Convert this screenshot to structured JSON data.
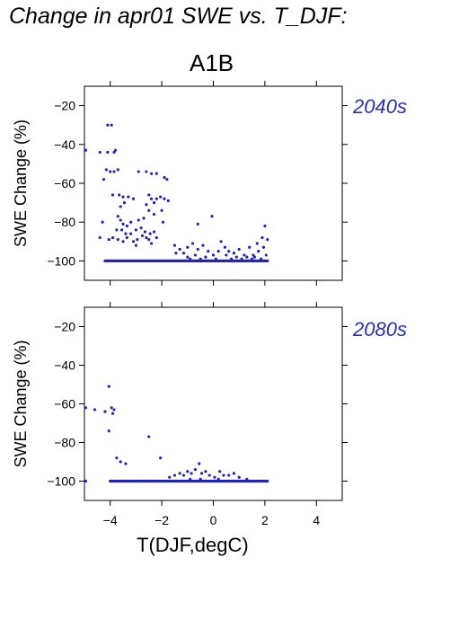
{
  "title": "Change in apr01 SWE vs. T_DJF:",
  "scenario": "A1B",
  "xlabel": "T(DJF,degC)",
  "colors": {
    "points": "#2424b0",
    "period_label": "#2a2fb4",
    "axis": "#000000"
  },
  "chart_data": [
    {
      "type": "scatter",
      "panel_label": "2040s",
      "ylabel": "SWE Change (%)",
      "xlim": [
        -5,
        5
      ],
      "ylim": [
        -110,
        -10
      ],
      "x_ticks": [
        -4,
        -2,
        0,
        2,
        4
      ],
      "y_ticks": [
        -100,
        -80,
        -60,
        -40,
        -20
      ],
      "y_tick_labels": [
        "−100",
        "−80",
        "−60",
        "−40",
        "−20"
      ],
      "x_tick_labels_shown": false,
      "grid": false,
      "points": [
        [
          -4.1,
          -30
        ],
        [
          -3.95,
          -30
        ],
        [
          -4.95,
          -43
        ],
        [
          -4.4,
          -44
        ],
        [
          -4.1,
          -44
        ],
        [
          -3.85,
          -44
        ],
        [
          -3.8,
          -43
        ],
        [
          -4.15,
          -53
        ],
        [
          -4.0,
          -54
        ],
        [
          -3.85,
          -54
        ],
        [
          -3.7,
          -53
        ],
        [
          -2.9,
          -54
        ],
        [
          -2.6,
          -54
        ],
        [
          -2.4,
          -55
        ],
        [
          -2.2,
          -55
        ],
        [
          -4.25,
          -58
        ],
        [
          -1.9,
          -57
        ],
        [
          -1.8,
          -58
        ],
        [
          -3.9,
          -66
        ],
        [
          -3.65,
          -66
        ],
        [
          -3.5,
          -67
        ],
        [
          -3.3,
          -67
        ],
        [
          -3.1,
          -68
        ],
        [
          -3.45,
          -70
        ],
        [
          -3.6,
          -72
        ],
        [
          -2.5,
          -66
        ],
        [
          -2.4,
          -68
        ],
        [
          -2.2,
          -68
        ],
        [
          -2.05,
          -67
        ],
        [
          -1.9,
          -68
        ],
        [
          -1.75,
          -69
        ],
        [
          -2.6,
          -71
        ],
        [
          -2.3,
          -70
        ],
        [
          -3.7,
          -77
        ],
        [
          -3.6,
          -79
        ],
        [
          -3.5,
          -81
        ],
        [
          -3.35,
          -82
        ],
        [
          -3.2,
          -80
        ],
        [
          -2.9,
          -79
        ],
        [
          -2.7,
          -78
        ],
        [
          -2.5,
          -74
        ],
        [
          -2.3,
          -76
        ],
        [
          -2.0,
          -74
        ],
        [
          -1.95,
          -80
        ],
        [
          -4.3,
          -80
        ],
        [
          -3.75,
          -84
        ],
        [
          -3.55,
          -84
        ],
        [
          -3.4,
          -86
        ],
        [
          -3.2,
          -86
        ],
        [
          -3.0,
          -84
        ],
        [
          -2.8,
          -83
        ],
        [
          -2.65,
          -85
        ],
        [
          -2.45,
          -86
        ],
        [
          -2.3,
          -85
        ],
        [
          -4.4,
          -88
        ],
        [
          -3.9,
          -88
        ],
        [
          -3.7,
          -89
        ],
        [
          -3.5,
          -90
        ],
        [
          -3.35,
          -88
        ],
        [
          -3.1,
          -90
        ],
        [
          -2.95,
          -89
        ],
        [
          -2.75,
          -87
        ],
        [
          -2.6,
          -88
        ],
        [
          -2.5,
          -89
        ],
        [
          -2.4,
          -91
        ],
        [
          -4.05,
          -89
        ],
        [
          -3.0,
          -92
        ],
        [
          -2.2,
          -88
        ],
        [
          -0.05,
          -77
        ],
        [
          -0.6,
          -81
        ],
        [
          -1.5,
          -92
        ],
        [
          -1.3,
          -94
        ],
        [
          -1.15,
          -96
        ],
        [
          -1.0,
          -93
        ],
        [
          -0.8,
          -91
        ],
        [
          -0.6,
          -94
        ],
        [
          -0.4,
          -92
        ],
        [
          -0.2,
          -95
        ],
        [
          0.0,
          -97
        ],
        [
          -1.45,
          -96
        ],
        [
          -1.0,
          -98
        ],
        [
          -0.7,
          -97
        ],
        [
          -0.3,
          -98
        ],
        [
          0.2,
          -95
        ],
        [
          0.3,
          -90
        ],
        [
          0.45,
          -93
        ],
        [
          0.6,
          -95
        ],
        [
          0.8,
          -96
        ],
        [
          1.0,
          -94
        ],
        [
          1.2,
          -97
        ],
        [
          1.4,
          -93
        ],
        [
          1.55,
          -97
        ],
        [
          1.75,
          -95
        ],
        [
          1.95,
          -93
        ],
        [
          2.0,
          -82
        ],
        [
          2.1,
          -89
        ],
        [
          1.9,
          -88
        ],
        [
          1.7,
          -91
        ],
        [
          0.5,
          -97
        ],
        [
          0.9,
          -98
        ],
        [
          1.3,
          -98
        ],
        [
          1.6,
          -98
        ],
        [
          2.05,
          -97
        ],
        [
          -0.9,
          -99
        ],
        [
          -0.5,
          -99
        ],
        [
          0.1,
          -99
        ],
        [
          0.7,
          -99
        ],
        [
          1.1,
          -99
        ],
        [
          1.5,
          -99
        ],
        [
          1.85,
          -99
        ]
      ],
      "baseline": {
        "y": -100,
        "x_from": -4.2,
        "x_to": 2.1
      }
    },
    {
      "type": "scatter",
      "panel_label": "2080s",
      "ylabel": "SWE Change (%)",
      "xlim": [
        -5,
        5
      ],
      "ylim": [
        -110,
        -10
      ],
      "x_ticks": [
        -4,
        -2,
        0,
        2,
        4
      ],
      "x_tick_labels": [
        "−4",
        "−2",
        "0",
        "2",
        "4"
      ],
      "y_ticks": [
        -100,
        -80,
        -60,
        -40,
        -20
      ],
      "y_tick_labels": [
        "−100",
        "−80",
        "−60",
        "−40",
        "−20"
      ],
      "grid": false,
      "points": [
        [
          -4.95,
          -100
        ],
        [
          -4.05,
          -51
        ],
        [
          -4.95,
          -62
        ],
        [
          -4.6,
          -63
        ],
        [
          -4.2,
          -64
        ],
        [
          -3.95,
          -62
        ],
        [
          -3.85,
          -63
        ],
        [
          -3.9,
          -65
        ],
        [
          -4.05,
          -74
        ],
        [
          -3.75,
          -88
        ],
        [
          -3.6,
          -90
        ],
        [
          -3.4,
          -91
        ],
        [
          -2.5,
          -77
        ],
        [
          -2.05,
          -88
        ],
        [
          -1.7,
          -98
        ],
        [
          -1.5,
          -97
        ],
        [
          -1.3,
          -96
        ],
        [
          -1.15,
          -97
        ],
        [
          -1.0,
          -95
        ],
        [
          -0.85,
          -96
        ],
        [
          -0.7,
          -94
        ],
        [
          -0.55,
          -91
        ],
        [
          -0.45,
          -96
        ],
        [
          -0.3,
          -95
        ],
        [
          -0.15,
          -97
        ],
        [
          0.05,
          -98
        ],
        [
          0.25,
          -95
        ],
        [
          0.4,
          -97
        ],
        [
          0.6,
          -97
        ],
        [
          0.8,
          -96
        ],
        [
          1.0,
          -98
        ],
        [
          1.3,
          -99
        ],
        [
          -0.9,
          -99
        ],
        [
          -0.5,
          -99
        ],
        [
          0.2,
          -99
        ]
      ],
      "baseline": {
        "y": -100,
        "x_from": -4.0,
        "x_to": 2.1
      }
    }
  ]
}
